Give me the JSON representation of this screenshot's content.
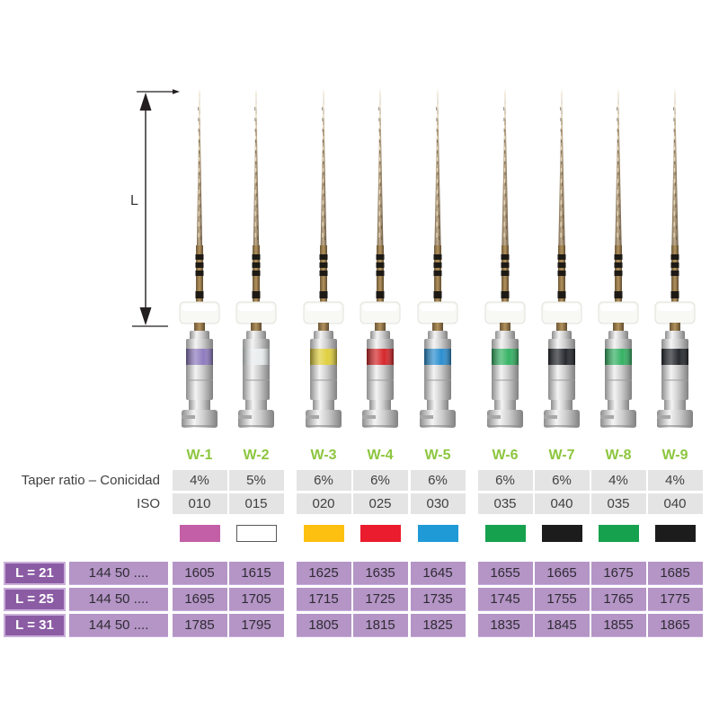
{
  "dimension": {
    "label": "L"
  },
  "files": [
    {
      "label": "W-1",
      "taper": "4%",
      "iso": "010",
      "swatch_color": "#c35fa7",
      "swatch_border": "",
      "ring_color": "#8f7cc0"
    },
    {
      "label": "W-2",
      "taper": "5%",
      "iso": "015",
      "swatch_color": "#ffffff",
      "swatch_border": "#58595b",
      "ring_color": "#e9edee"
    },
    {
      "label": "W-3",
      "taper": "6%",
      "iso": "020",
      "swatch_color": "#fdc010",
      "swatch_border": "",
      "ring_color": "#e0cf3f"
    },
    {
      "label": "W-4",
      "taper": "6%",
      "iso": "025",
      "swatch_color": "#ea1c2d",
      "swatch_border": "",
      "ring_color": "#d6282b"
    },
    {
      "label": "W-5",
      "taper": "6%",
      "iso": "030",
      "swatch_color": "#209ad6",
      "swatch_border": "",
      "ring_color": "#2b8fd0"
    },
    {
      "label": "W-6",
      "taper": "6%",
      "iso": "035",
      "swatch_color": "#16a14e",
      "swatch_border": "",
      "ring_color": "#35b264"
    },
    {
      "label": "W-7",
      "taper": "6%",
      "iso": "040",
      "swatch_color": "#1c1c1c",
      "swatch_border": "",
      "ring_color": "#26292e"
    },
    {
      "label": "W-8",
      "taper": "4%",
      "iso": "035",
      "swatch_color": "#16a14e",
      "swatch_border": "",
      "ring_color": "#35b264"
    },
    {
      "label": "W-9",
      "taper": "4%",
      "iso": "040",
      "swatch_color": "#1c1c1c",
      "swatch_border": "",
      "ring_color": "#26292e"
    }
  ],
  "spec_rows": {
    "taper_label": "Taper ratio – Conicidad",
    "iso_label": "ISO"
  },
  "order_table": {
    "rows": [
      {
        "length_label": "L = 21",
        "prefix": "144 50 ....",
        "codes": [
          "1605",
          "1615",
          "1625",
          "1635",
          "1645",
          "1655",
          "1665",
          "1675",
          "1685"
        ]
      },
      {
        "length_label": "L = 25",
        "prefix": "144 50 ....",
        "codes": [
          "1695",
          "1705",
          "1715",
          "1725",
          "1735",
          "1745",
          "1755",
          "1765",
          "1775"
        ]
      },
      {
        "length_label": "L = 31",
        "prefix": "144 50 ....",
        "codes": [
          "1785",
          "1795",
          "1805",
          "1815",
          "1825",
          "1835",
          "1845",
          "1855",
          "1865"
        ]
      }
    ]
  },
  "colors": {
    "label_green": "#8dc63f",
    "spec_cell_bg": "#e4e4e4",
    "spec_text": "#414042",
    "order_cell_bg": "#b495c6",
    "order_header_bg": "#8b5ca4",
    "order_header_outline": "#c9afd9",
    "order_text": "#2f2b33",
    "order_header_text": "#ffffff"
  }
}
